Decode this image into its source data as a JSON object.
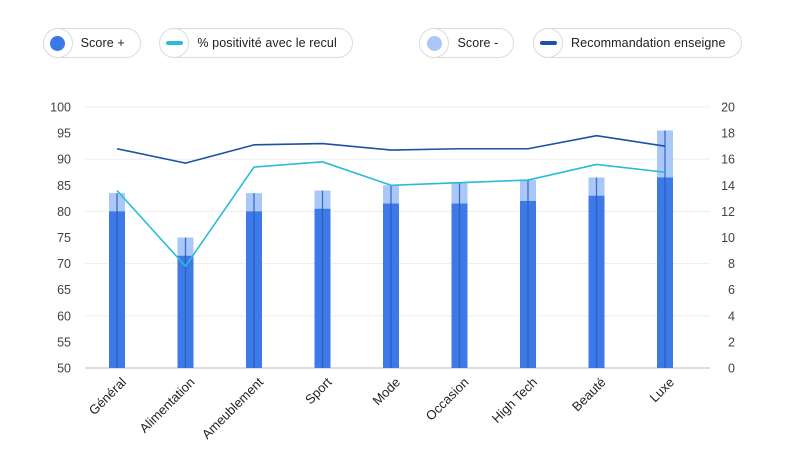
{
  "legend": {
    "items": [
      {
        "label": "Score +",
        "marker": "dot",
        "color": "#3b78e7"
      },
      {
        "label": "% positivité avec le recul",
        "marker": "dash",
        "color": "#29bcd8"
      },
      {
        "label": "Score -",
        "marker": "dot",
        "color": "#a9c7f8"
      },
      {
        "label": "Recommandation enseigne",
        "marker": "dash",
        "color": "#1e50a3"
      }
    ]
  },
  "chart_data": {
    "type": "bar",
    "subtype": "combo-overlaid-bars-with-lines",
    "title": "",
    "xlabel": "",
    "ylabel": "",
    "categories": [
      "Général",
      "Alimentation",
      "Ameublement",
      "Sport",
      "Mode",
      "Occasion",
      "High Tech",
      "Beauté",
      "Luxe"
    ],
    "series": [
      {
        "name": "Score +",
        "type": "bar",
        "axis": "left",
        "color": "#3d79e7",
        "values": [
          80,
          71.5,
          80,
          80.5,
          81.5,
          81.5,
          82,
          83,
          86.5
        ]
      },
      {
        "name": "Score -",
        "type": "bar",
        "axis": "left",
        "color": "#a9c7f8",
        "values": [
          83.5,
          75,
          83.5,
          84,
          85,
          85.5,
          86,
          86.5,
          95.5
        ]
      },
      {
        "name": "% positivité avec le recul",
        "type": "line",
        "axis": "left",
        "color": "#29bcd8",
        "values": [
          84,
          69.5,
          88.5,
          89.5,
          85,
          85.5,
          86,
          89,
          87.5
        ]
      },
      {
        "name": "Recommandation enseigne",
        "type": "line",
        "axis": "right",
        "color": "#1e50a3",
        "values": [
          16.8,
          15.7,
          17.1,
          17.2,
          16.7,
          16.8,
          16.8,
          17.8,
          17.0
        ]
      }
    ],
    "left_axis": {
      "min": 50,
      "max": 100,
      "tick_step": 5,
      "grid_step": 10
    },
    "right_axis": {
      "min": 0,
      "max": 20,
      "tick_step": 2
    },
    "legend_position": "top",
    "grid": "horizontal",
    "colors": {
      "bar_dark": "#3d79e7",
      "bar_light": "#a9c7f8",
      "bar_center_line": "#2b5cb8",
      "line_teal": "#29bcd8",
      "line_navy": "#1e50a3",
      "gridline": "#ebedf0",
      "baseline": "#c6c9ce",
      "tick_text": "#3f4347",
      "category_text": "#1f2023"
    }
  }
}
